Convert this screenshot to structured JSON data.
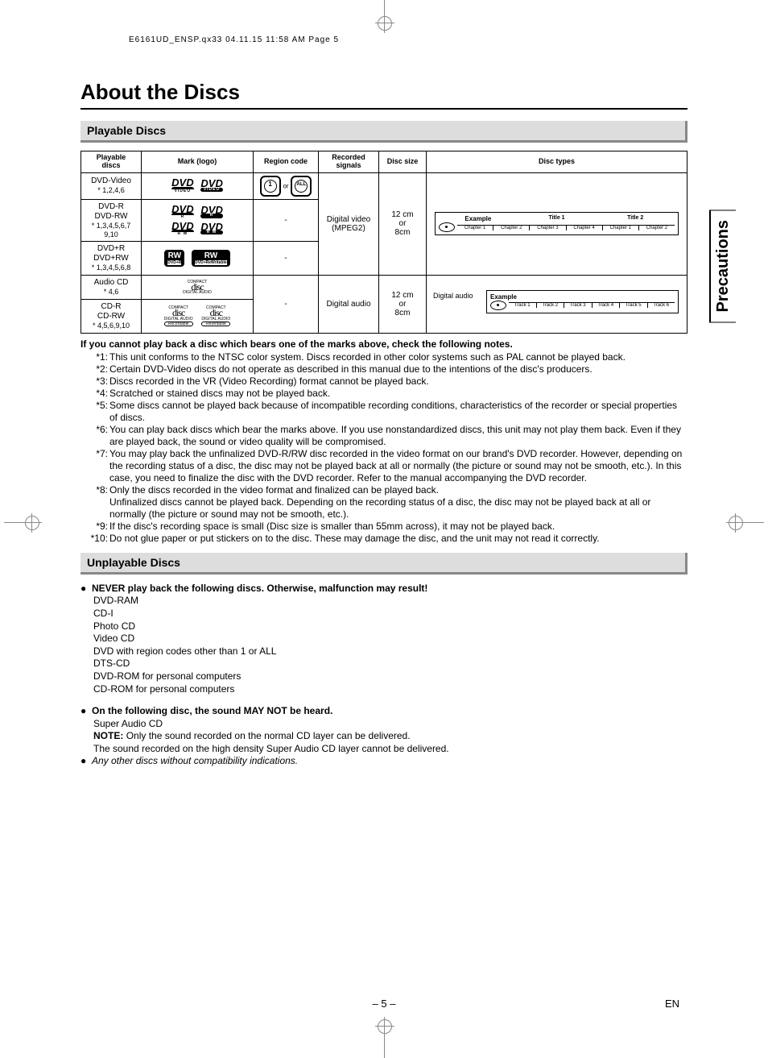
{
  "cropHeader": "E6161UD_ENSP.qx33  04.11.15 11:58 AM  Page 5",
  "sideTab": "Precautions",
  "title": "About the Discs",
  "sections": {
    "playable": "Playable Discs",
    "unplayable": "Unplayable Discs"
  },
  "table": {
    "headers": {
      "playable": "Playable\ndiscs",
      "mark": "Mark (logo)",
      "region": "Region code",
      "signals": "Recorded\nsignals",
      "size": "Disc size",
      "types": "Disc types"
    },
    "rows": [
      {
        "name": "DVD-Video",
        "footnote": "* 1,2,4,6",
        "region_or": "or",
        "region_num1": "1",
        "region_num2": "ALL"
      },
      {
        "name": "DVD-R\nDVD-RW",
        "footnote": "* 1,3,4,5,6,7\n9,10",
        "region": "-"
      },
      {
        "name": "DVD+R\nDVD+RW",
        "footnote": "* 1,3,4,5,6,8",
        "region": "-"
      },
      {
        "name": "Audio CD",
        "footnote": "* 4,6"
      },
      {
        "name": "CD-R\nCD-RW",
        "footnote": "* 4,5,6,9,10",
        "region": "-"
      }
    ],
    "signals": {
      "video": "Digital video\n(MPEG2)",
      "audio": "Digital audio"
    },
    "size": "12 cm\nor\n8cm",
    "diagram_video": {
      "example": "Example",
      "title1": "Title 1",
      "title2": "Title 2",
      "chapters": [
        "Chapter 1",
        "Chapter 2",
        "Chapter 3",
        "Chapter 4",
        "Chapter 1",
        "Chapter 2"
      ]
    },
    "diagram_audio": {
      "label": "Digital audio",
      "example": "Example",
      "tracks": [
        "Track 1",
        "Track 2",
        "Track 3",
        "Track 4",
        "Track 5",
        "Track 6"
      ]
    },
    "logo_text": {
      "dvd": "DVD",
      "video": "VIDEO",
      "r": "R",
      "rw": "R W",
      "rwmark": "RW",
      "dvdpr": "DVD+R",
      "dvdprw": "DVD+ReWritable",
      "compact": "COMPACT",
      "disc": "disc",
      "digaudio": "DIGITAL AUDIO",
      "recordable": "Recordable",
      "rewritable": "ReWritable"
    }
  },
  "notesLead": "If you cannot play back a disc which bears one of the marks above, check the following notes.",
  "notes": [
    {
      "n": "*1:",
      "t": "This unit conforms to the NTSC color system. Discs recorded in other color systems such as PAL cannot be played back."
    },
    {
      "n": "*2:",
      "t": "Certain DVD-Video discs do not operate as described in this manual due to the intentions of the disc's producers."
    },
    {
      "n": "*3:",
      "t": "Discs recorded in the VR (Video Recording) format cannot be played back."
    },
    {
      "n": "*4:",
      "t": "Scratched or stained discs may not be played back."
    },
    {
      "n": "*5:",
      "t": "Some discs cannot be played back because of incompatible recording conditions, characteristics of the recorder or special properties of discs."
    },
    {
      "n": "*6:",
      "t": "You can play back discs which bear the marks above. If you use nonstandardized discs, this unit may not play them back. Even if they are played back, the sound or video quality will be compromised."
    },
    {
      "n": "*7:",
      "t": "You may play back the unfinalized DVD-R/RW disc recorded in the video format on our brand's DVD recorder. However, depending on the recording status of a disc, the disc may not be played back at all or normally (the picture or sound may not be smooth, etc.). In this case, you need to finalize the disc with the DVD recorder. Refer to the manual accompanying the DVD recorder."
    },
    {
      "n": "*8:",
      "t": "Only the discs recorded in the video format and finalized can be played back.\nUnfinalized discs cannot be played back. Depending on the recording status of a disc, the disc may not be played back at all or normally (the picture or sound may not be smooth, etc.)."
    },
    {
      "n": "*9:",
      "t": "If the disc's recording space is small (Disc size is smaller than 55mm across), it may not be played back."
    },
    {
      "n": "*10:",
      "t": "Do not glue paper or put stickers on to the disc. These may damage the disc, and the unit may not read it correctly."
    }
  ],
  "unplayable": {
    "lead1": "NEVER play back the following discs. Otherwise, malfunction may result!",
    "items1": [
      "DVD-RAM",
      "CD-I",
      "Photo CD",
      "Video CD",
      "DVD with region codes other than 1 or ALL",
      "DTS-CD",
      "DVD-ROM for personal computers",
      "CD-ROM for personal computers"
    ],
    "lead2": "On the following disc, the sound MAY NOT be heard.",
    "item2": "Super Audio CD",
    "noteLabel": "NOTE:",
    "note": "Only the sound recorded on the normal CD layer can be delivered.\nThe sound recorded on the high density Super Audio CD layer cannot be delivered.",
    "last": "Any other discs without compatibility indications."
  },
  "footer": {
    "page": "– 5 –",
    "lang": "EN"
  }
}
